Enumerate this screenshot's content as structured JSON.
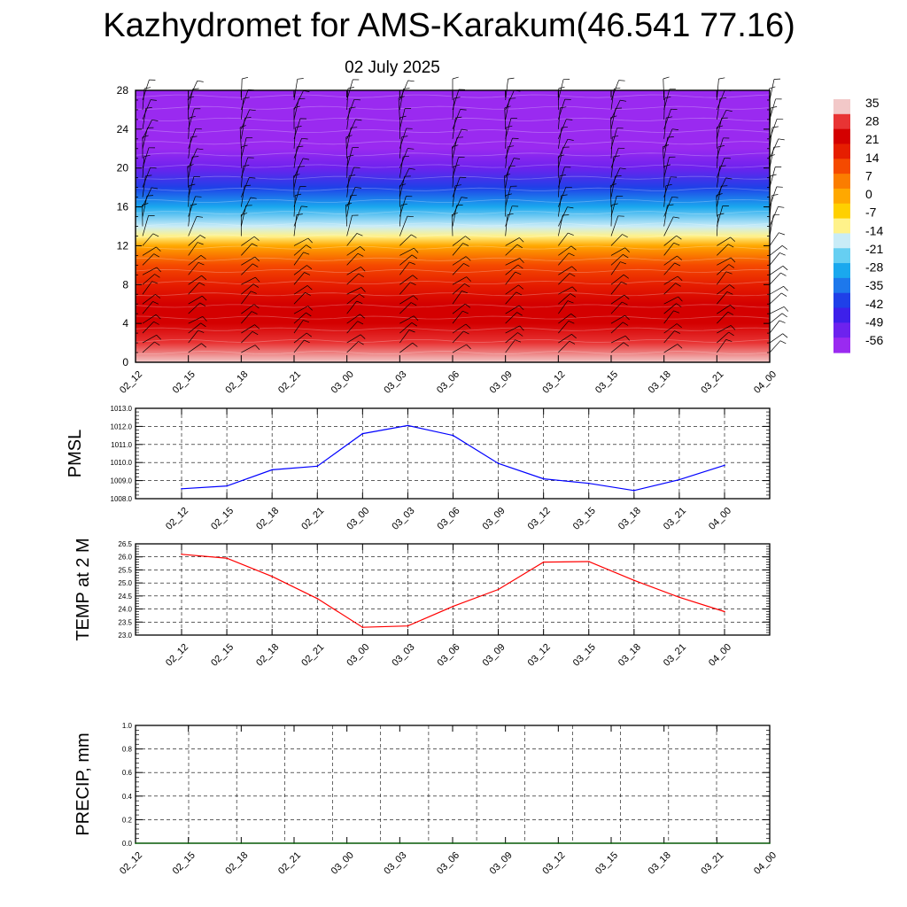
{
  "page": {
    "title": "Kazhydromet for AMS-Karakum(46.541 77.16)",
    "subtitle": "02 July 2025"
  },
  "colors": {
    "pmsl_line": "#0000ff",
    "temp_line": "#ff0000",
    "precip_line": "#006400",
    "colorbar": [
      "#f2c8c8",
      "#e83434",
      "#d40000",
      "#e61e00",
      "#f54a00",
      "#fb7d00",
      "#ffa800",
      "#ffd000",
      "#fff28a",
      "#c9ecf7",
      "#66cff2",
      "#1aa8ee",
      "#1d78ec",
      "#1f40e8",
      "#3d20ea",
      "#6d22ee",
      "#9a2af0"
    ]
  },
  "chart_data": [
    {
      "type": "heatmap",
      "title": "",
      "xlabel": "",
      "ylabel": "",
      "x_categories": [
        "02_12",
        "02_15",
        "02_18",
        "02_21",
        "03_00",
        "03_03",
        "03_06",
        "03_09",
        "03_12",
        "03_15",
        "03_18",
        "03_21",
        "04_00"
      ],
      "y_ticks": [
        0,
        4,
        8,
        12,
        16,
        20,
        24,
        28
      ],
      "ylim": [
        0,
        28
      ],
      "colorbar_labels": [
        "35",
        "28",
        "21",
        "14",
        "7",
        "0",
        "-7",
        "-14",
        "-21",
        "-28",
        "-35",
        "-42",
        "-49",
        "-56"
      ],
      "colorbar_range": [
        -60,
        36
      ],
      "y_levels": [
        0,
        2,
        4,
        6,
        8,
        10,
        12,
        13,
        14,
        16,
        18,
        20,
        22,
        24,
        26,
        28
      ],
      "level_values": [
        31,
        27,
        24,
        20,
        14,
        8,
        2,
        -12,
        -20,
        -30,
        -40,
        -50,
        -58,
        -60,
        -60,
        -60
      ],
      "wind_barbs": true,
      "grid": false
    },
    {
      "type": "line",
      "ylabel": "PMSL",
      "x": [
        "02_12",
        "02_15",
        "02_18",
        "02_21",
        "03_00",
        "03_03",
        "03_06",
        "03_09",
        "03_12",
        "03_15",
        "03_18",
        "03_21",
        "04_00"
      ],
      "ylim": [
        1008.0,
        1013.0
      ],
      "y_ticks": [
        "1008.0",
        "1009.0",
        "1010.0",
        "1011.0",
        "1012.0",
        "1013.0"
      ],
      "series": [
        {
          "values": [
            1008.55,
            1008.7,
            1009.6,
            1009.8,
            1011.6,
            1012.05,
            1011.5,
            1009.95,
            1009.1,
            1008.85,
            1008.45,
            1009.05,
            1009.85
          ]
        }
      ],
      "grid": true
    },
    {
      "type": "line",
      "ylabel": "TEMP at 2 M",
      "x": [
        "02_12",
        "02_15",
        "02_18",
        "02_21",
        "03_00",
        "03_03",
        "03_06",
        "03_09",
        "03_12",
        "03_15",
        "03_18",
        "03_21",
        "04_00"
      ],
      "ylim": [
        23.0,
        26.5
      ],
      "y_ticks": [
        "23.0",
        "23.5",
        "24.0",
        "24.5",
        "25.0",
        "25.5",
        "26.0",
        "26.5"
      ],
      "series": [
        {
          "values": [
            26.1,
            25.95,
            25.25,
            24.4,
            23.3,
            23.35,
            24.1,
            24.75,
            25.8,
            25.82,
            25.1,
            24.45,
            23.9
          ]
        }
      ],
      "grid": true
    },
    {
      "type": "line",
      "ylabel": "PRECIP, mm",
      "x": [
        "02_12",
        "02_15",
        "02_18",
        "02_21",
        "03_00",
        "03_03",
        "03_06",
        "03_09",
        "03_12",
        "03_15",
        "03_18",
        "03_21",
        "04_00"
      ],
      "ylim": [
        0.0,
        1.0
      ],
      "y_ticks": [
        "0.0",
        "0.2",
        "0.4",
        "0.6",
        "0.8",
        "1.0"
      ],
      "series": [
        {
          "values": [
            0,
            0,
            0,
            0,
            0,
            0,
            0,
            0,
            0,
            0,
            0,
            0,
            0
          ]
        }
      ],
      "grid": true
    }
  ]
}
